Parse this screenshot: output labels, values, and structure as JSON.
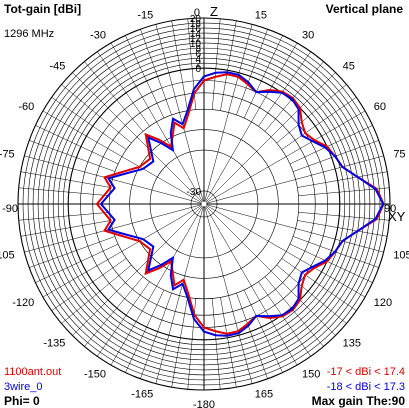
{
  "header": {
    "title": "Tot-gain [dBi]",
    "plane": "Vertical plane",
    "frequency": "1296 MHz"
  },
  "footer": {
    "phi": "Phi= 0",
    "max_gain": "Max gain The:90",
    "legend_1": "1100ant.out",
    "legend_2": "3wire_0",
    "range_1": "-17 < dBi < 17.4",
    "range_2": "-18 < dBi < 17.3"
  },
  "colors": {
    "series_1": "#e00000",
    "series_2": "#0000e0",
    "grid": "#000000",
    "text": "#000000"
  },
  "chart_data": {
    "type": "polar",
    "title": "Tot-gain [dBi]",
    "subtitle": "Vertical plane",
    "angle_zero_label": "Z",
    "angle_90_label": "XY",
    "angle_labels": [
      "0",
      "15",
      "30",
      "45",
      "60",
      "75",
      "90",
      "105",
      "120",
      "135",
      "150",
      "165",
      "-180",
      "-165",
      "-150",
      "-135",
      "-120",
      "-105",
      "-90",
      "-75",
      "-60",
      "-45",
      "-30",
      "-15"
    ],
    "radial_ticks": [
      "20",
      "18",
      "16",
      "14",
      "12",
      "10",
      "8",
      "6",
      "4",
      "2",
      "0",
      "-30"
    ],
    "rlim": [
      -30,
      20
    ],
    "series": [
      {
        "name": "1100ant.out",
        "color": "#e00000",
        "points": [
          [
            0,
            -3
          ],
          [
            5,
            -2
          ],
          [
            10,
            -1
          ],
          [
            15,
            -1
          ],
          [
            20,
            -2
          ],
          [
            25,
            -3
          ],
          [
            30,
            -1
          ],
          [
            35,
            0.5
          ],
          [
            40,
            1
          ],
          [
            45,
            0
          ],
          [
            50,
            -2
          ],
          [
            55,
            -3
          ],
          [
            60,
            -2
          ],
          [
            65,
            0
          ],
          [
            70,
            1.5
          ],
          [
            75,
            3
          ],
          [
            80,
            8
          ],
          [
            85,
            15
          ],
          [
            90,
            17.4
          ],
          [
            95,
            15
          ],
          [
            100,
            8
          ],
          [
            105,
            3
          ],
          [
            110,
            1.5
          ],
          [
            115,
            0
          ],
          [
            120,
            -2
          ],
          [
            125,
            -3
          ],
          [
            130,
            -2
          ],
          [
            135,
            0
          ],
          [
            140,
            1
          ],
          [
            145,
            0.5
          ],
          [
            150,
            -1
          ],
          [
            155,
            -3
          ],
          [
            160,
            -2
          ],
          [
            165,
            -1
          ],
          [
            170,
            -1
          ],
          [
            175,
            -2
          ],
          [
            180,
            -3
          ],
          [
            185,
            -6
          ],
          [
            190,
            -11
          ],
          [
            195,
            -14
          ],
          [
            200,
            -12
          ],
          [
            205,
            -15
          ],
          [
            210,
            -17
          ],
          [
            215,
            -14
          ],
          [
            220,
            -11
          ],
          [
            230,
            -16
          ],
          [
            240,
            -15
          ],
          [
            250,
            -11
          ],
          [
            255,
            -8
          ],
          [
            260,
            -10
          ],
          [
            270,
            -7
          ],
          [
            280,
            -10
          ],
          [
            285,
            -8
          ],
          [
            290,
            -11
          ],
          [
            300,
            -15
          ],
          [
            310,
            -16
          ],
          [
            320,
            -11
          ],
          [
            325,
            -14
          ],
          [
            330,
            -17
          ],
          [
            335,
            -15
          ],
          [
            340,
            -12
          ],
          [
            345,
            -14
          ],
          [
            350,
            -11
          ],
          [
            355,
            -6
          ],
          [
            360,
            -3
          ]
        ]
      },
      {
        "name": "3wire_0",
        "color": "#0000e0",
        "points": [
          [
            0,
            -2
          ],
          [
            5,
            -1
          ],
          [
            10,
            -0.5
          ],
          [
            15,
            -0.5
          ],
          [
            20,
            -1.5
          ],
          [
            25,
            -3
          ],
          [
            30,
            -1.5
          ],
          [
            35,
            0
          ],
          [
            40,
            0.5
          ],
          [
            45,
            -0.5
          ],
          [
            50,
            -3
          ],
          [
            55,
            -4
          ],
          [
            60,
            -2.5
          ],
          [
            65,
            -0.5
          ],
          [
            70,
            1.5
          ],
          [
            75,
            3
          ],
          [
            80,
            8
          ],
          [
            85,
            14.5
          ],
          [
            90,
            17.3
          ],
          [
            95,
            14.5
          ],
          [
            100,
            8
          ],
          [
            105,
            3
          ],
          [
            110,
            1.5
          ],
          [
            115,
            -0.5
          ],
          [
            120,
            -2.5
          ],
          [
            125,
            -4
          ],
          [
            130,
            -3
          ],
          [
            135,
            -0.5
          ],
          [
            140,
            0.5
          ],
          [
            145,
            0
          ],
          [
            150,
            -1.5
          ],
          [
            155,
            -3
          ],
          [
            160,
            -1.5
          ],
          [
            165,
            -0.5
          ],
          [
            170,
            -0.5
          ],
          [
            175,
            -1
          ],
          [
            180,
            -2
          ],
          [
            185,
            -5
          ],
          [
            190,
            -10
          ],
          [
            195,
            -13
          ],
          [
            200,
            -11
          ],
          [
            205,
            -14
          ],
          [
            210,
            -18
          ],
          [
            215,
            -15
          ],
          [
            220,
            -12
          ],
          [
            230,
            -17
          ],
          [
            240,
            -16
          ],
          [
            250,
            -12
          ],
          [
            255,
            -9
          ],
          [
            260,
            -11
          ],
          [
            270,
            -8
          ],
          [
            280,
            -11
          ],
          [
            285,
            -9
          ],
          [
            290,
            -12
          ],
          [
            300,
            -16
          ],
          [
            310,
            -17
          ],
          [
            320,
            -12
          ],
          [
            325,
            -15
          ],
          [
            330,
            -18
          ],
          [
            335,
            -14
          ],
          [
            340,
            -11
          ],
          [
            345,
            -13
          ],
          [
            350,
            -10
          ],
          [
            355,
            -5
          ],
          [
            360,
            -2
          ]
        ]
      }
    ]
  }
}
